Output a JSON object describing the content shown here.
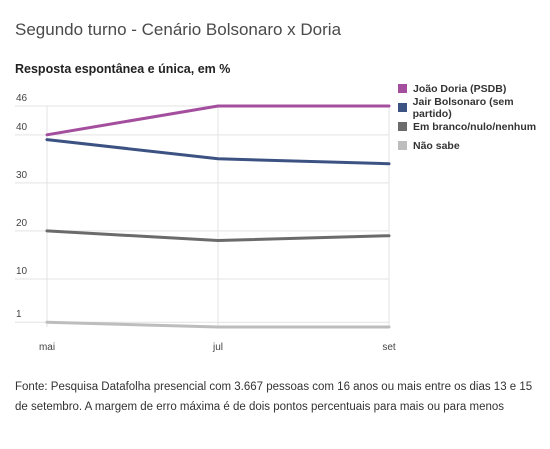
{
  "header": {
    "title": "Segundo turno - Cenário Bolsonaro x Doria",
    "subtitle": "Resposta espontânea e única, em %"
  },
  "chart_data": {
    "type": "line",
    "x": [
      "mai",
      "jul",
      "set"
    ],
    "y_ticks": [
      1,
      10,
      20,
      30,
      40,
      46
    ],
    "ylim": [
      0,
      46
    ],
    "grid": true,
    "legend_position": "right",
    "series": [
      {
        "name": "João Doria (PSDB)",
        "color": "#a44f9e",
        "values": [
          40,
          46,
          46
        ]
      },
      {
        "name": "Jair Bolsonaro (sem partido)",
        "color": "#3b5282",
        "values": [
          39,
          35,
          34
        ]
      },
      {
        "name": "Em branco/nulo/nenhum",
        "color": "#6b6b6b",
        "values": [
          20,
          18,
          19
        ]
      },
      {
        "name": "Não sabe",
        "color": "#bdbdbd",
        "values": [
          1,
          0,
          0
        ]
      }
    ]
  },
  "footer": {
    "source": "Fonte: Pesquisa Datafolha presencial com 3.667 pessoas com 16 anos ou mais entre os dias 13 e 15 de setembro. A margem de erro máxima é de dois pontos percentuais para mais ou para menos"
  }
}
